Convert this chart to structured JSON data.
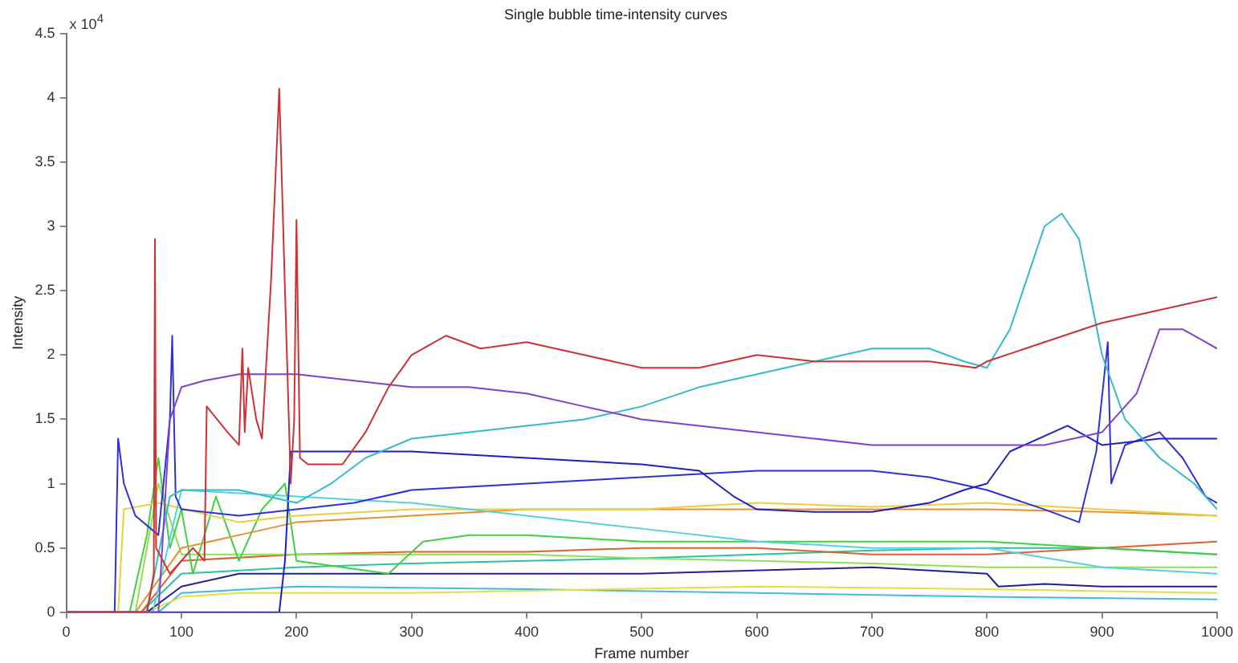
{
  "chart_data": {
    "type": "line",
    "title": "Single bubble time-intensity curves",
    "xlabel": "Frame number",
    "ylabel": "Intensity",
    "annotations": [
      "x 10$^{4}$"
    ],
    "xlim": [
      0,
      1000
    ],
    "xticks": [
      0,
      100,
      200,
      300,
      400,
      500,
      600,
      700,
      800,
      900,
      1000
    ],
    "ylim": [
      0,
      4.5
    ],
    "yticks": [
      0,
      0.5,
      1,
      1.5,
      2,
      2.5,
      3,
      3.5,
      4,
      4.5
    ],
    "grid": false,
    "legend": false,
    "marker": "none",
    "line_style": "solid",
    "series": [
      {
        "color": "#cc3333",
        "x": [
          0,
          70,
          76,
          77,
          78,
          90,
          110,
          120,
          122,
          140,
          150,
          153,
          155,
          158,
          165,
          170,
          178,
          185,
          190,
          195,
          198,
          200,
          203,
          210,
          240,
          260,
          280,
          300,
          330,
          360,
          400,
          450,
          500,
          550,
          600,
          650,
          700,
          750,
          790,
          800,
          850,
          900,
          950,
          1000
        ],
        "values": [
          0,
          0,
          0.3,
          2.9,
          0.5,
          0.3,
          0.5,
          0.4,
          1.6,
          1.4,
          1.3,
          2.05,
          1.4,
          1.9,
          1.5,
          1.35,
          2.6,
          4.07,
          2.5,
          1.0,
          1.5,
          3.05,
          1.2,
          1.15,
          1.15,
          1.4,
          1.75,
          2.0,
          2.15,
          2.05,
          2.1,
          2.0,
          1.9,
          1.9,
          2.0,
          1.95,
          1.95,
          1.95,
          1.9,
          1.95,
          2.1,
          2.25,
          2.35,
          2.45
        ]
      },
      {
        "color": "#8040d0",
        "x": [
          0,
          80,
          90,
          100,
          120,
          150,
          200,
          250,
          300,
          350,
          400,
          450,
          500,
          550,
          600,
          650,
          700,
          750,
          800,
          850,
          900,
          930,
          950,
          970,
          990,
          1000
        ],
        "values": [
          0,
          0,
          1.5,
          1.75,
          1.8,
          1.85,
          1.85,
          1.8,
          1.75,
          1.75,
          1.7,
          1.6,
          1.5,
          1.45,
          1.4,
          1.35,
          1.3,
          1.3,
          1.3,
          1.3,
          1.4,
          1.7,
          2.2,
          2.2,
          2.1,
          2.05
        ]
      },
      {
        "color": "#33bbcc",
        "x": [
          0,
          70,
          90,
          100,
          150,
          200,
          230,
          260,
          300,
          350,
          400,
          450,
          500,
          550,
          600,
          650,
          700,
          750,
          780,
          800,
          820,
          835,
          850,
          865,
          880,
          900,
          920,
          950,
          980,
          1000
        ],
        "values": [
          0,
          0,
          0.9,
          0.95,
          0.95,
          0.85,
          1.0,
          1.2,
          1.35,
          1.4,
          1.45,
          1.5,
          1.6,
          1.75,
          1.85,
          1.95,
          2.05,
          2.05,
          1.95,
          1.9,
          2.2,
          2.6,
          3.0,
          3.1,
          2.9,
          2.0,
          1.5,
          1.2,
          1.0,
          0.8
        ]
      },
      {
        "color": "#2020c0",
        "x": [
          0,
          185,
          190,
          195,
          250,
          300,
          400,
          500,
          550,
          580,
          600,
          650,
          700,
          750,
          780,
          800,
          820,
          870,
          900,
          950,
          1000
        ],
        "values": [
          0,
          0,
          0.4,
          1.25,
          1.25,
          1.25,
          1.2,
          1.15,
          1.1,
          0.9,
          0.8,
          0.78,
          0.78,
          0.85,
          0.95,
          1.0,
          1.25,
          1.45,
          1.3,
          1.35,
          1.35
        ]
      },
      {
        "color": "#3030d8",
        "x": [
          0,
          42,
          45,
          50,
          60,
          80,
          90,
          92,
          95,
          100,
          150,
          200,
          250,
          300,
          400,
          500,
          600,
          700,
          750,
          800,
          850,
          880,
          895,
          905,
          908,
          920,
          950,
          970,
          990,
          1000
        ],
        "values": [
          0,
          0,
          1.35,
          1.0,
          0.75,
          0.6,
          1.5,
          2.15,
          0.9,
          0.8,
          0.75,
          0.8,
          0.85,
          0.95,
          1.0,
          1.05,
          1.1,
          1.1,
          1.05,
          0.95,
          0.8,
          0.7,
          1.25,
          2.1,
          1.0,
          1.3,
          1.4,
          1.2,
          0.9,
          0.85
        ]
      },
      {
        "color": "#55d0e0",
        "x": [
          0,
          75,
          100,
          200,
          300,
          400,
          500,
          600,
          700,
          800,
          900,
          1000
        ],
        "values": [
          0,
          0,
          0.95,
          0.9,
          0.85,
          0.75,
          0.65,
          0.55,
          0.5,
          0.5,
          0.35,
          0.3
        ]
      },
      {
        "color": "#e8d040",
        "x": [
          0,
          45,
          50,
          80,
          150,
          200,
          300,
          400,
          500,
          600,
          700,
          800,
          900,
          1000
        ],
        "values": [
          0,
          0,
          0.8,
          0.85,
          0.7,
          0.75,
          0.8,
          0.8,
          0.8,
          0.85,
          0.82,
          0.85,
          0.8,
          0.75
        ]
      },
      {
        "color": "#e89030",
        "x": [
          0,
          60,
          100,
          150,
          200,
          300,
          400,
          500,
          600,
          700,
          800,
          900,
          1000
        ],
        "values": [
          0,
          0,
          0.5,
          0.6,
          0.7,
          0.75,
          0.8,
          0.8,
          0.8,
          0.8,
          0.8,
          0.78,
          0.75
        ]
      },
      {
        "color": "#40d040",
        "x": [
          0,
          55,
          70,
          80,
          90,
          100,
          110,
          130,
          150,
          170,
          190,
          200,
          240,
          280,
          310,
          350,
          400,
          500,
          600,
          700,
          800,
          900,
          1000
        ],
        "values": [
          0,
          0,
          0.6,
          1.2,
          0.5,
          0.8,
          0.3,
          0.9,
          0.4,
          0.8,
          1.0,
          0.4,
          0.35,
          0.3,
          0.55,
          0.6,
          0.6,
          0.55,
          0.55,
          0.55,
          0.55,
          0.5,
          0.45
        ]
      },
      {
        "color": "#90e050",
        "x": [
          0,
          60,
          80,
          100,
          200,
          300,
          400,
          500,
          600,
          700,
          800,
          900,
          1000
        ],
        "values": [
          0,
          0,
          1.0,
          0.45,
          0.45,
          0.45,
          0.45,
          0.42,
          0.4,
          0.38,
          0.35,
          0.35,
          0.35
        ]
      },
      {
        "color": "#e06030",
        "x": [
          0,
          65,
          100,
          200,
          300,
          400,
          500,
          600,
          700,
          800,
          900,
          1000
        ],
        "values": [
          0,
          0,
          0.4,
          0.45,
          0.47,
          0.47,
          0.5,
          0.5,
          0.45,
          0.45,
          0.5,
          0.55
        ]
      },
      {
        "color": "#30c0a0",
        "x": [
          0,
          65,
          100,
          200,
          300,
          400,
          500,
          600,
          700,
          800,
          900,
          1000
        ],
        "values": [
          0,
          0,
          0.3,
          0.35,
          0.38,
          0.4,
          0.42,
          0.45,
          0.48,
          0.5,
          0.5,
          0.45
        ]
      },
      {
        "color": "#202090",
        "x": [
          0,
          70,
          100,
          150,
          300,
          500,
          700,
          800,
          810,
          850,
          900,
          1000
        ],
        "values": [
          0,
          0,
          0.2,
          0.3,
          0.3,
          0.3,
          0.35,
          0.3,
          0.2,
          0.22,
          0.2,
          0.2
        ]
      },
      {
        "color": "#e0e040",
        "x": [
          0,
          70,
          100,
          150,
          300,
          600,
          800,
          1000
        ],
        "values": [
          0,
          0,
          0.12,
          0.15,
          0.15,
          0.2,
          0.18,
          0.15
        ]
      },
      {
        "color": "#40b8e8",
        "x": [
          0,
          80,
          100,
          200,
          400,
          600,
          800,
          1000
        ],
        "values": [
          0,
          0,
          0.15,
          0.2,
          0.18,
          0.15,
          0.12,
          0.1
        ]
      }
    ]
  }
}
